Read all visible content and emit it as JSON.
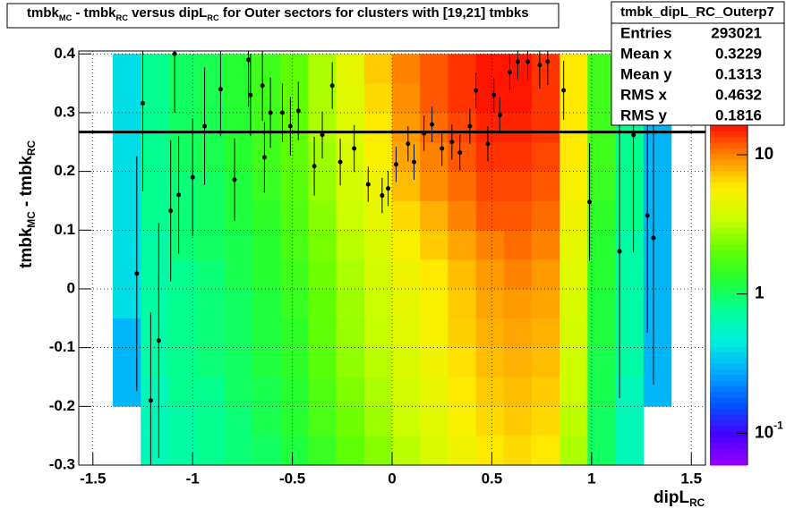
{
  "chart_data": {
    "type": "heatmap",
    "title": {
      "parts": [
        "tmbk",
        " - tmbk",
        " versus dipL",
        " for Outer sectors for clusters with [19,21] tmbks"
      ],
      "subs": [
        "MC",
        "RC",
        "RC"
      ]
    },
    "x_label": {
      "parts": [
        "dipL"
      ],
      "subs": [
        "RC"
      ]
    },
    "y_label": {
      "parts": [
        "tmbk",
        " - tmbk"
      ],
      "subs": [
        "MC",
        "RC"
      ]
    },
    "xlim": [
      -1.5708,
      1.5708
    ],
    "ylim": [
      -0.3,
      0.405
    ],
    "xticks": [
      -1.5,
      -1,
      -0.5,
      0,
      0.5,
      1,
      1.5
    ],
    "yticks": [
      -0.3,
      -0.2,
      -0.1,
      0,
      0.1,
      0.2,
      0.3,
      0.4
    ],
    "grid": true,
    "zlim": [
      0.059,
      16.3
    ],
    "zlog": true,
    "zticks": [
      {
        "value": 0.1,
        "label": "10",
        "exponent": "-1"
      },
      1,
      10
    ],
    "palette": [
      "#9900ff",
      "#4400ff",
      "#0055ff",
      "#00aaff",
      "#00eedd",
      "#00ff99",
      "#22ff33",
      "#66ff00",
      "#ccff00",
      "#ffee00",
      "#ff8800",
      "#ff1100"
    ],
    "xbins": [
      -1.4,
      -1.26,
      -1.12,
      -0.98,
      -0.84,
      -0.7,
      -0.56,
      -0.42,
      -0.28,
      -0.14,
      0,
      0.14,
      0.28,
      0.42,
      0.56,
      0.7,
      0.84,
      0.98,
      1.12,
      1.26,
      1.4
    ],
    "ybins": [
      -0.3,
      -0.25,
      -0.2,
      -0.15,
      -0.1,
      -0.05,
      0,
      0.05,
      0.1,
      0.15,
      0.2,
      0.25,
      0.3,
      0.35,
      0.4
    ],
    "z": [
      [
        null,
        0.6,
        0.7,
        0.8,
        0.9,
        1,
        1.2,
        1.5,
        2,
        2.5,
        3.2,
        4,
        5,
        6,
        6.5,
        6,
        3,
        1,
        0.6,
        null
      ],
      [
        null,
        0.6,
        0.7,
        0.8,
        0.9,
        1.1,
        1.3,
        1.7,
        2.2,
        2.8,
        3.5,
        4.3,
        5.5,
        6.5,
        7,
        6.5,
        3.2,
        1,
        0.6,
        null
      ],
      [
        0.3,
        0.6,
        0.8,
        0.8,
        1,
        1.1,
        1.3,
        1.8,
        2.4,
        3,
        3.8,
        4.6,
        6,
        7,
        7.5,
        7,
        3.5,
        1.1,
        0.6,
        0.3
      ],
      [
        0.3,
        0.7,
        0.8,
        0.9,
        1,
        1.2,
        1.4,
        1.9,
        2.6,
        3.2,
        4,
        5,
        6.3,
        7.5,
        8,
        7.5,
        3.6,
        1.1,
        0.7,
        0.3
      ],
      [
        0.3,
        0.7,
        0.8,
        0.9,
        1,
        1.2,
        1.4,
        2,
        2.7,
        3.4,
        4.3,
        5.3,
        6.8,
        8,
        8.5,
        8,
        3.8,
        1.2,
        0.7,
        0.3
      ],
      [
        0.4,
        0.7,
        0.8,
        0.9,
        1,
        1.2,
        1.5,
        2,
        2.8,
        3.5,
        4.5,
        5.5,
        7,
        8.5,
        9,
        8.5,
        4,
        1.2,
        0.7,
        0.3
      ],
      [
        0.4,
        0.7,
        0.8,
        0.9,
        1.1,
        1.3,
        1.6,
        2.2,
        3,
        3.8,
        5,
        6,
        7.5,
        9,
        10,
        9,
        4.2,
        1.3,
        0.7,
        0.3
      ],
      [
        0.4,
        0.7,
        0.9,
        1,
        1.1,
        1.3,
        1.7,
        2.3,
        3.2,
        4,
        5.5,
        7,
        8.5,
        10,
        11,
        10,
        4.5,
        1.3,
        0.7,
        0.3
      ],
      [
        0.4,
        0.8,
        0.9,
        1,
        1.2,
        1.4,
        1.8,
        2.5,
        3.5,
        4.5,
        6.5,
        8,
        10,
        12,
        12,
        11,
        5,
        1.4,
        0.8,
        0.3
      ],
      [
        0.4,
        0.8,
        0.9,
        1,
        1.2,
        1.5,
        1.9,
        2.7,
        3.8,
        5,
        7.5,
        9.5,
        11,
        13,
        13,
        12,
        5.5,
        1.5,
        0.8,
        0.3
      ],
      [
        0.4,
        0.8,
        1,
        1.1,
        1.3,
        1.6,
        2,
        2.8,
        4,
        5.5,
        8.5,
        10,
        12,
        14,
        14,
        13,
        6,
        1.6,
        0.8,
        0.3
      ],
      [
        0.4,
        0.8,
        1,
        1.1,
        1.3,
        1.6,
        2,
        3,
        4.2,
        6,
        9,
        11,
        13,
        15,
        15,
        14,
        6,
        1.6,
        0.8,
        0.3
      ],
      [
        0.4,
        0.8,
        1,
        1.1,
        1.3,
        1.6,
        2,
        3,
        4.3,
        6.5,
        9.5,
        12,
        14,
        16,
        16,
        14,
        6,
        1.6,
        0.8,
        0.3
      ],
      [
        0.4,
        0.8,
        1,
        1.1,
        1.3,
        1.6,
        2,
        3,
        4.5,
        7,
        10,
        12,
        14,
        16,
        16,
        14,
        6,
        1.6,
        0.8,
        0.3
      ]
    ],
    "profile": {
      "color": "#000000",
      "x": [
        -1.28,
        -1.25,
        -1.21,
        -1.17,
        -1.11,
        -1.07,
        -1.09,
        -1.0,
        -0.94,
        -0.86,
        -0.79,
        -0.72,
        -0.71,
        -0.65,
        -0.64,
        -0.61,
        -0.55,
        -0.51,
        -0.47,
        -0.39,
        -0.35,
        -0.3,
        -0.26,
        -0.19,
        -0.12,
        -0.05,
        -0.02,
        0.02,
        0.08,
        0.11,
        0.16,
        0.2,
        0.25,
        0.3,
        0.34,
        0.39,
        0.42,
        0.48,
        0.51,
        0.54,
        0.59,
        0.63,
        0.68,
        0.74,
        0.78,
        0.86,
        0.99,
        1.14,
        1.21,
        1.28,
        1.31
      ],
      "values": [
        0.026,
        0.316,
        -0.19,
        -0.088,
        0.133,
        0.16,
        0.4,
        0.19,
        0.277,
        0.34,
        0.186,
        0.39,
        0.33,
        0.346,
        0.224,
        0.3,
        0.3,
        0.277,
        0.303,
        0.209,
        0.262,
        0.346,
        0.216,
        0.239,
        0.178,
        0.159,
        0.171,
        0.212,
        0.247,
        0.216,
        0.265,
        0.28,
        0.239,
        0.25,
        0.232,
        0.277,
        0.338,
        0.247,
        0.33,
        0.296,
        0.369,
        0.387,
        0.387,
        0.381,
        0.387,
        0.338,
        0.148,
        0.064,
        0.262,
        0.125,
        0.087
      ],
      "errors": [
        0.2,
        0.15,
        0.15,
        0.2,
        0.12,
        0.1,
        0.1,
        0.1,
        0.1,
        0.08,
        0.07,
        0.08,
        0.07,
        0.06,
        0.06,
        0.06,
        0.05,
        0.05,
        0.05,
        0.05,
        0.04,
        0.04,
        0.04,
        0.04,
        0.03,
        0.03,
        0.03,
        0.03,
        0.03,
        0.03,
        0.03,
        0.03,
        0.03,
        0.03,
        0.03,
        0.03,
        0.03,
        0.03,
        0.03,
        0.03,
        0.03,
        0.03,
        0.03,
        0.04,
        0.04,
        0.05,
        0.1,
        0.25,
        0.2,
        0.2,
        0.25
      ]
    },
    "line_y": 0.267,
    "stats": {
      "name": "tmbk_dipL_RC_Outerp7",
      "rows": [
        [
          "Entries",
          293021
        ],
        [
          "Mean x",
          0.3229
        ],
        [
          "Mean y",
          0.1313
        ],
        [
          "RMS x",
          0.4632
        ],
        [
          "RMS y",
          0.1816
        ]
      ]
    }
  }
}
